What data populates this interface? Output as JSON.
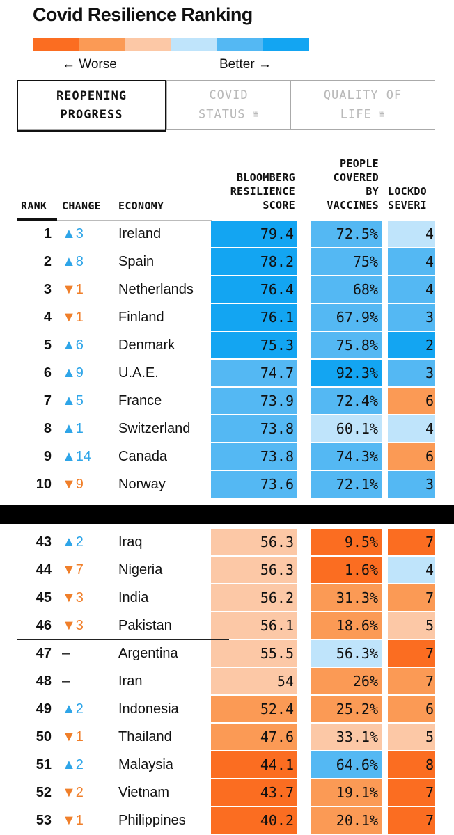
{
  "title": "Covid Resilience Ranking",
  "scale": {
    "colors": [
      "#fb6d21",
      "#fb9a55",
      "#fcc8a6",
      "#bfe4fb",
      "#54b8f3",
      "#13a5f2"
    ],
    "worse_label": "← Worse",
    "better_label": "Better →"
  },
  "tabs": [
    {
      "line1": "REOPENING",
      "line2": "PROGRESS",
      "filter": "",
      "active": true
    },
    {
      "line1": "COVID",
      "line2": "STATUS",
      "filter": "⩸",
      "active": false
    },
    {
      "line1": "QUALITY OF",
      "line2": "LIFE",
      "filter": "⩸",
      "active": false
    }
  ],
  "headers": {
    "rank": "RANK",
    "change": "CHANGE",
    "economy": "ECONOMY",
    "score": [
      "BLOOMBERG",
      "RESILIENCE",
      "SCORE"
    ],
    "vaccines": [
      "PEOPLE",
      "COVERED",
      "BY",
      "VACCINES"
    ],
    "lockdown": "LOCKDO SEVERI"
  },
  "chart_data": {
    "type": "table",
    "columns": [
      "RANK",
      "CHANGE",
      "ECONOMY",
      "BLOOMBERG RESILIENCE SCORE",
      "PEOPLE COVERED BY VACCINES",
      "LOCKDO SEVERI"
    ],
    "rows": [
      {
        "rank": "1",
        "dir": "up",
        "change": "▲3",
        "economy": "Ireland",
        "score": "79.4",
        "vacc": "72.5%",
        "lock": "4",
        "score_color": "#13a5f2",
        "vacc_color": "#54b8f3",
        "lock_color": "#bfe4fb"
      },
      {
        "rank": "2",
        "dir": "up",
        "change": "▲8",
        "economy": "Spain",
        "score": "78.2",
        "vacc": "75%",
        "lock": "4",
        "score_color": "#13a5f2",
        "vacc_color": "#54b8f3",
        "lock_color": "#54b8f3"
      },
      {
        "rank": "3",
        "dir": "down",
        "change": "▼1",
        "economy": "Netherlands",
        "score": "76.4",
        "vacc": "68%",
        "lock": "4",
        "score_color": "#13a5f2",
        "vacc_color": "#54b8f3",
        "lock_color": "#54b8f3"
      },
      {
        "rank": "4",
        "dir": "down",
        "change": "▼1",
        "economy": "Finland",
        "score": "76.1",
        "vacc": "67.9%",
        "lock": "3",
        "score_color": "#13a5f2",
        "vacc_color": "#54b8f3",
        "lock_color": "#54b8f3"
      },
      {
        "rank": "5",
        "dir": "up",
        "change": "▲6",
        "economy": "Denmark",
        "score": "75.3",
        "vacc": "75.8%",
        "lock": "2",
        "score_color": "#13a5f2",
        "vacc_color": "#54b8f3",
        "lock_color": "#13a5f2"
      },
      {
        "rank": "6",
        "dir": "up",
        "change": "▲9",
        "economy": "U.A.E.",
        "score": "74.7",
        "vacc": "92.3%",
        "lock": "3",
        "score_color": "#54b8f3",
        "vacc_color": "#13a5f2",
        "lock_color": "#54b8f3"
      },
      {
        "rank": "7",
        "dir": "up",
        "change": "▲5",
        "economy": "France",
        "score": "73.9",
        "vacc": "72.4%",
        "lock": "6",
        "score_color": "#54b8f3",
        "vacc_color": "#54b8f3",
        "lock_color": "#fb9a55"
      },
      {
        "rank": "8",
        "dir": "up",
        "change": "▲1",
        "economy": "Switzerland",
        "score": "73.8",
        "vacc": "60.1%",
        "lock": "4",
        "score_color": "#54b8f3",
        "vacc_color": "#bfe4fb",
        "lock_color": "#bfe4fb"
      },
      {
        "rank": "9",
        "dir": "up",
        "change": "▲14",
        "economy": "Canada",
        "score": "73.8",
        "vacc": "74.3%",
        "lock": "6",
        "score_color": "#54b8f3",
        "vacc_color": "#54b8f3",
        "lock_color": "#fb9a55"
      },
      {
        "rank": "10",
        "dir": "down",
        "change": "▼9",
        "economy": "Norway",
        "score": "73.6",
        "vacc": "72.1%",
        "lock": "3",
        "score_color": "#54b8f3",
        "vacc_color": "#54b8f3",
        "lock_color": "#54b8f3"
      },
      {
        "rank": "43",
        "dir": "up",
        "change": "▲2",
        "economy": "Iraq",
        "score": "56.3",
        "vacc": "9.5%",
        "lock": "7",
        "score_color": "#fcc8a6",
        "vacc_color": "#fb6d21",
        "lock_color": "#fb6d21"
      },
      {
        "rank": "44",
        "dir": "down",
        "change": "▼7",
        "economy": "Nigeria",
        "score": "56.3",
        "vacc": "1.6%",
        "lock": "4",
        "score_color": "#fcc8a6",
        "vacc_color": "#fb6d21",
        "lock_color": "#bfe4fb"
      },
      {
        "rank": "45",
        "dir": "down",
        "change": "▼3",
        "economy": "India",
        "score": "56.2",
        "vacc": "31.3%",
        "lock": "7",
        "score_color": "#fcc8a6",
        "vacc_color": "#fb9a55",
        "lock_color": "#fb9a55"
      },
      {
        "rank": "46",
        "dir": "down",
        "change": "▼3",
        "economy": "Pakistan",
        "score": "56.1",
        "vacc": "18.6%",
        "lock": "5",
        "score_color": "#fcc8a6",
        "vacc_color": "#fb9a55",
        "lock_color": "#fcc8a6"
      },
      {
        "rank": "47",
        "dir": "none",
        "change": "–",
        "economy": "Argentina",
        "score": "55.5",
        "vacc": "56.3%",
        "lock": "7",
        "score_color": "#fcc8a6",
        "vacc_color": "#bfe4fb",
        "lock_color": "#fb6d21"
      },
      {
        "rank": "48",
        "dir": "none",
        "change": "–",
        "economy": "Iran",
        "score": "54",
        "vacc": "26%",
        "lock": "7",
        "score_color": "#fcc8a6",
        "vacc_color": "#fb9a55",
        "lock_color": "#fb9a55"
      },
      {
        "rank": "49",
        "dir": "up",
        "change": "▲2",
        "economy": "Indonesia",
        "score": "52.4",
        "vacc": "25.2%",
        "lock": "6",
        "score_color": "#fb9a55",
        "vacc_color": "#fb9a55",
        "lock_color": "#fb9a55"
      },
      {
        "rank": "50",
        "dir": "down",
        "change": "▼1",
        "economy": "Thailand",
        "score": "47.6",
        "vacc": "33.1%",
        "lock": "5",
        "score_color": "#fb9a55",
        "vacc_color": "#fcc8a6",
        "lock_color": "#fcc8a6"
      },
      {
        "rank": "51",
        "dir": "up",
        "change": "▲2",
        "economy": "Malaysia",
        "score": "44.1",
        "vacc": "64.6%",
        "lock": "8",
        "score_color": "#fb6d21",
        "vacc_color": "#54b8f3",
        "lock_color": "#fb6d21"
      },
      {
        "rank": "52",
        "dir": "down",
        "change": "▼2",
        "economy": "Vietnam",
        "score": "43.7",
        "vacc": "19.1%",
        "lock": "7",
        "score_color": "#fb6d21",
        "vacc_color": "#fb9a55",
        "lock_color": "#fb6d21"
      },
      {
        "rank": "53",
        "dir": "down",
        "change": "▼1",
        "economy": "Philippines",
        "score": "40.2",
        "vacc": "20.1%",
        "lock": "7",
        "score_color": "#fb6d21",
        "vacc_color": "#fb9a55",
        "lock_color": "#fb6d21"
      }
    ]
  }
}
